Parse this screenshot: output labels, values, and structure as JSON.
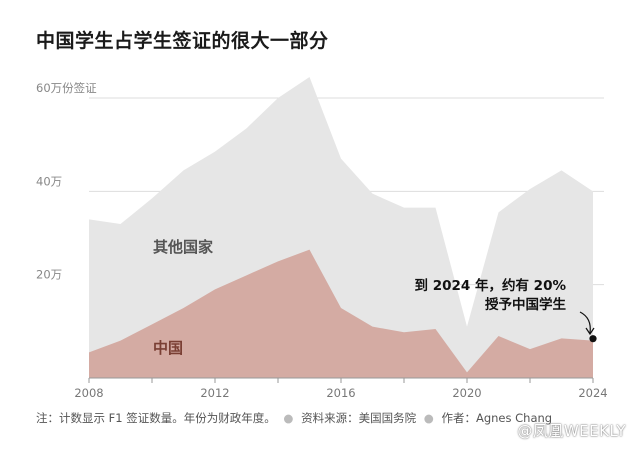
{
  "title": "中国学生占学生签证的很大一部分",
  "chart_data": {
    "type": "area",
    "title": "中国学生占学生签证的很大一部分",
    "x": [
      2008,
      2009,
      2010,
      2011,
      2012,
      2013,
      2014,
      2015,
      2016,
      2017,
      2018,
      2019,
      2020,
      2021,
      2022,
      2023,
      2024
    ],
    "series": [
      {
        "name": "其他国家",
        "values": [
          34000,
          33000,
          38500,
          44500,
          48500,
          53500,
          60000,
          64500,
          47000,
          39500,
          36500,
          36500,
          11000,
          35500,
          40500,
          44500,
          40000
        ]
      },
      {
        "name": "中国",
        "values": [
          5500,
          8000,
          11500,
          15000,
          19000,
          22000,
          25000,
          27500,
          15000,
          11000,
          9800,
          10500,
          1200,
          9000,
          6200,
          8500,
          8000
        ]
      }
    ],
    "xticks": [
      "2008",
      "2012",
      "2016",
      "2020",
      "2024"
    ],
    "yticks": [
      "20万",
      "40万",
      "60万份签证"
    ],
    "ylim": [
      0,
      65000
    ],
    "xlim": [
      2008,
      2024
    ],
    "grid": true,
    "colors": {
      "total": "#e6e6e6",
      "china": "#d4aba3",
      "axis": "#999999",
      "grid": "#dddddd"
    },
    "annotation": {
      "line1": "到 2024 年，约有 20%",
      "line2": "授予中国学生",
      "x": 2024,
      "y": 8000
    }
  },
  "footer": {
    "note": "注：计数显示 F1 签证数量。年份为财政年度。",
    "source": "资料来源：美国国务院",
    "author": "作者：Agnes Chang"
  },
  "watermark": "@凤凰WEEKLY"
}
